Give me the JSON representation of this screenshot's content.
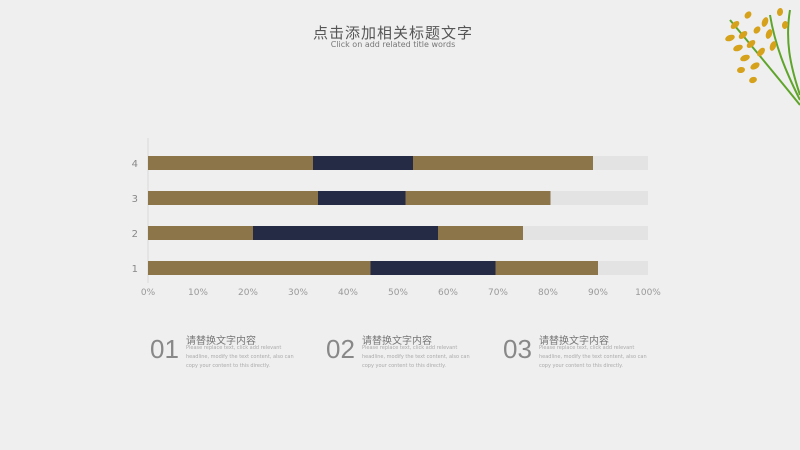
{
  "header": {
    "title": "点击添加相关标题文字",
    "subtitle": "Click on add related title words"
  },
  "chart_data": {
    "type": "bar",
    "orientation": "horizontal",
    "stacked": true,
    "categories": [
      "1",
      "2",
      "3",
      "4"
    ],
    "series": [
      {
        "values": [
          44.5,
          21,
          34,
          33
        ],
        "color": "#8c7548"
      },
      {
        "values": [
          25,
          37,
          17.5,
          20
        ],
        "color": "#252b44"
      },
      {
        "values": [
          20.5,
          17,
          29,
          36
        ],
        "color": "#8c7548"
      },
      {
        "values": [
          10,
          25,
          19.5,
          11
        ],
        "color": "#e3e3e3"
      }
    ],
    "x_ticks": [
      "0%",
      "10%",
      "20%",
      "30%",
      "40%",
      "50%",
      "60%",
      "70%",
      "80%",
      "90%",
      "100%"
    ],
    "xlim": [
      0,
      100
    ],
    "grid": false,
    "legend": "none"
  },
  "items": [
    {
      "num": "01",
      "heading": "请替换文字内容",
      "body": "Please replace text, click add relevant headline, modify the text content, also can copy your content to this directly."
    },
    {
      "num": "02",
      "heading": "请替换文字内容",
      "body": "Please replace text, click add relevant headline, modify the text content, also can copy your content to this directly."
    },
    {
      "num": "03",
      "heading": "请替换文字内容",
      "body": "Please replace text, click add relevant headline, modify the text content, also can copy your content to this directly."
    }
  ]
}
